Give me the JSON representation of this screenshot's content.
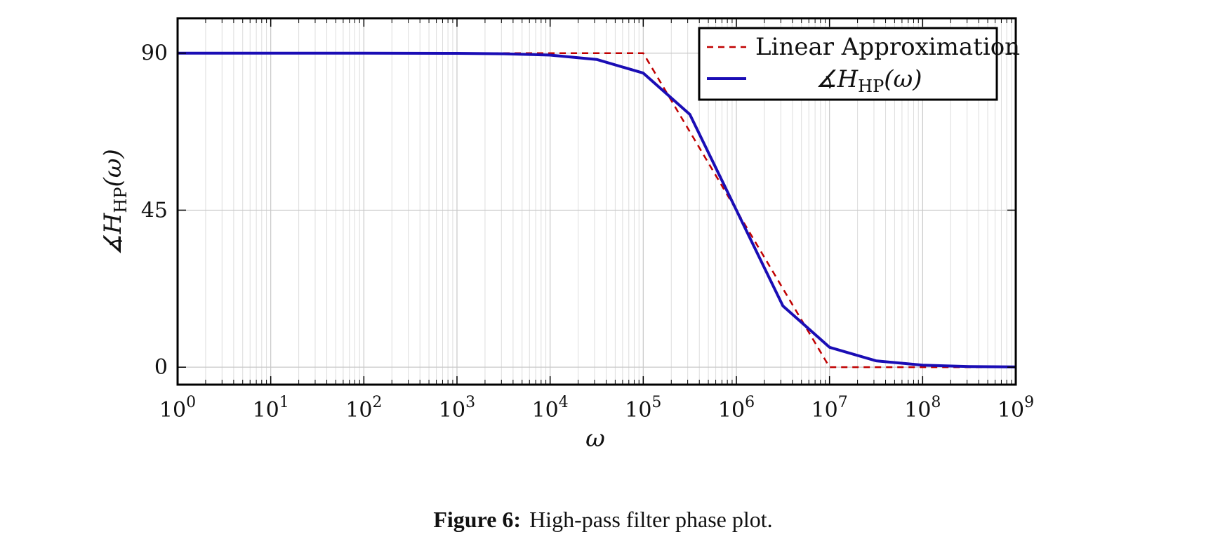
{
  "chart_data": {
    "type": "line",
    "xscale": "log",
    "xlim": [
      1,
      1000000000
    ],
    "ylim": [
      -5,
      100
    ],
    "xlabel": "ω",
    "ylabel": "∡H_HP(ω)",
    "xtick_labels": [
      {
        "base": "10",
        "exp": "0"
      },
      {
        "base": "10",
        "exp": "1"
      },
      {
        "base": "10",
        "exp": "2"
      },
      {
        "base": "10",
        "exp": "3"
      },
      {
        "base": "10",
        "exp": "4"
      },
      {
        "base": "10",
        "exp": "5"
      },
      {
        "base": "10",
        "exp": "6"
      },
      {
        "base": "10",
        "exp": "7"
      },
      {
        "base": "10",
        "exp": "8"
      },
      {
        "base": "10",
        "exp": "9"
      }
    ],
    "yticks": [
      0,
      45,
      90
    ],
    "ytick_labels": [
      "0",
      "45",
      "90"
    ],
    "grid": true,
    "legend_position": "top-right",
    "series": [
      {
        "name": "Linear Approximation",
        "color": "#c00000",
        "style": "dashed",
        "x": [
          1,
          100000,
          10000000,
          1000000000
        ],
        "y": [
          90,
          90,
          0,
          0
        ]
      },
      {
        "name": "∡H_HP(ω)",
        "color": "#1a0db5",
        "style": "solid",
        "x": [
          1,
          10,
          100,
          1000,
          3162,
          10000,
          31623,
          100000,
          316228,
          1000000,
          3162278,
          10000000,
          31622777,
          100000000,
          316227766,
          1000000000
        ],
        "y": [
          90,
          90,
          90,
          89.94,
          89.82,
          89.43,
          88.19,
          84.29,
          72.45,
          45,
          17.55,
          5.71,
          1.81,
          0.57,
          0.18,
          0.06
        ]
      }
    ]
  },
  "legend": {
    "linear_label": "Linear Approximation",
    "phase_label_prefix": "∡H",
    "phase_label_sub": "HP",
    "phase_label_suffix": "(ω)"
  },
  "ylabel_parts": {
    "prefix": "∡H",
    "sub": "HP",
    "suffix": "(ω)"
  },
  "caption": {
    "label": "Figure 6:",
    "text": "High-pass filter phase plot."
  }
}
